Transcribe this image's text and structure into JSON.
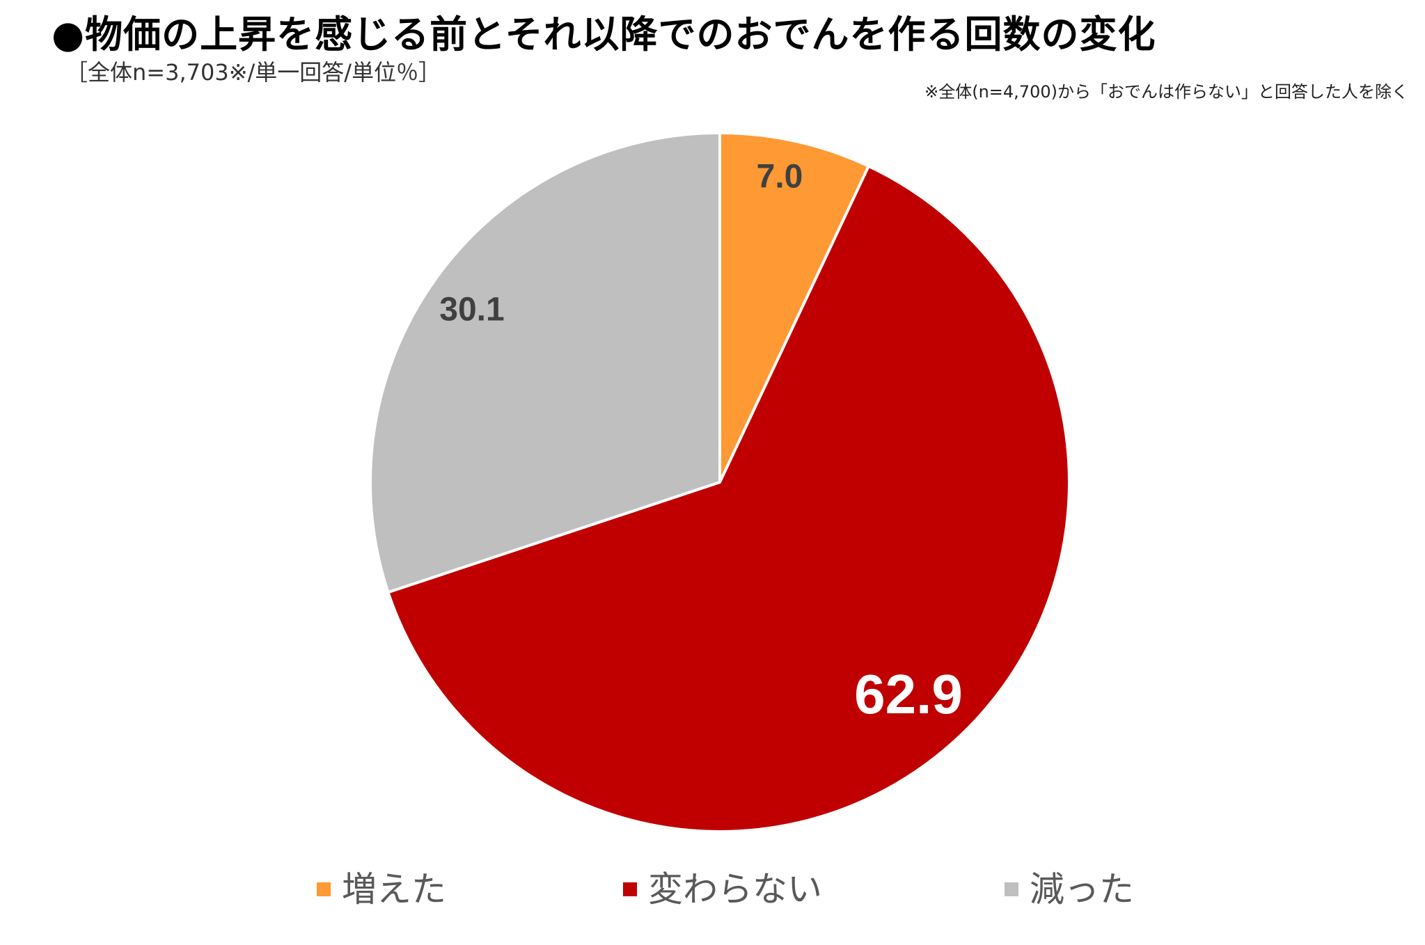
{
  "header": {
    "title": "●物価の上昇を感じる前とそれ以降でのおでんを作る回数の変化",
    "subtitle": "［全体n=3,703※/単一回答/単位％］",
    "note": "※全体(n=4,700)から「おでんは作らない」と回答した人を除く"
  },
  "chart_data": {
    "type": "pie",
    "categories": [
      "増えた",
      "変わらない",
      "減った"
    ],
    "values": [
      7.0,
      62.9,
      30.1
    ],
    "data_labels": [
      "7.0",
      "62.9",
      "30.1"
    ],
    "colors": [
      "#FF9933",
      "#C00000",
      "#BFBFBF"
    ],
    "label_colors": [
      "#404040",
      "#FFFFFF",
      "#404040"
    ],
    "start_angle": "12 o'clock",
    "direction": "clockwise",
    "legend_position": "bottom"
  },
  "legend": {
    "items": [
      {
        "label": "増えた",
        "color": "#FF9933"
      },
      {
        "label": "変わらない",
        "color": "#C00000"
      },
      {
        "label": "減った",
        "color": "#BFBFBF"
      }
    ]
  }
}
